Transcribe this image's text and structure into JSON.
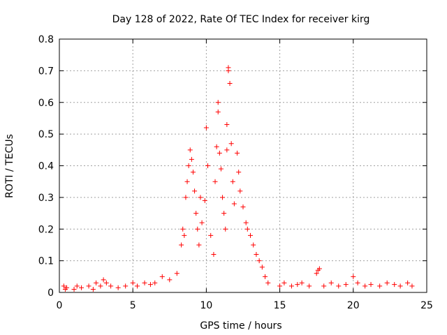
{
  "chart_data": {
    "type": "scatter",
    "title": "Day 128 of 2022, Rate Of TEC Index for receiver kirg",
    "xlabel": "GPS time / hours",
    "ylabel": "ROTI / TECUs",
    "xlim": [
      0,
      25
    ],
    "ylim": [
      0,
      0.8
    ],
    "xticks": [
      "0",
      "5",
      "10",
      "15",
      "20",
      "25"
    ],
    "yticks": [
      "0",
      "0.1",
      "0.2",
      "0.3",
      "0.4",
      "0.5",
      "0.6",
      "0.7",
      "0.8"
    ],
    "grid": true,
    "marker": "+",
    "color": "#ff0000",
    "points": [
      [
        0.3,
        0.02
      ],
      [
        0.4,
        0.01
      ],
      [
        0.5,
        0.015
      ],
      [
        1.0,
        0.01
      ],
      [
        1.2,
        0.02
      ],
      [
        1.5,
        0.015
      ],
      [
        2.0,
        0.02
      ],
      [
        2.3,
        0.01
      ],
      [
        2.5,
        0.03
      ],
      [
        2.8,
        0.02
      ],
      [
        3.0,
        0.04
      ],
      [
        3.2,
        0.03
      ],
      [
        3.5,
        0.02
      ],
      [
        4.0,
        0.015
      ],
      [
        4.5,
        0.02
      ],
      [
        5.0,
        0.03
      ],
      [
        5.3,
        0.02
      ],
      [
        5.8,
        0.03
      ],
      [
        6.2,
        0.025
      ],
      [
        6.5,
        0.03
      ],
      [
        7.0,
        0.05
      ],
      [
        7.5,
        0.04
      ],
      [
        8.0,
        0.06
      ],
      [
        8.3,
        0.15
      ],
      [
        8.4,
        0.2
      ],
      [
        8.5,
        0.18
      ],
      [
        8.6,
        0.3
      ],
      [
        8.7,
        0.35
      ],
      [
        8.8,
        0.4
      ],
      [
        8.9,
        0.45
      ],
      [
        9.0,
        0.42
      ],
      [
        9.1,
        0.38
      ],
      [
        9.2,
        0.32
      ],
      [
        9.3,
        0.25
      ],
      [
        9.4,
        0.2
      ],
      [
        9.5,
        0.15
      ],
      [
        9.6,
        0.3
      ],
      [
        9.7,
        0.22
      ],
      [
        9.9,
        0.29
      ],
      [
        10.0,
        0.52
      ],
      [
        10.1,
        0.4
      ],
      [
        10.3,
        0.18
      ],
      [
        10.5,
        0.12
      ],
      [
        10.6,
        0.35
      ],
      [
        10.7,
        0.46
      ],
      [
        10.8,
        0.6
      ],
      [
        10.8,
        0.57
      ],
      [
        10.9,
        0.44
      ],
      [
        11.0,
        0.39
      ],
      [
        11.1,
        0.3
      ],
      [
        11.2,
        0.25
      ],
      [
        11.3,
        0.2
      ],
      [
        11.4,
        0.45
      ],
      [
        11.4,
        0.53
      ],
      [
        11.5,
        0.7
      ],
      [
        11.5,
        0.71
      ],
      [
        11.6,
        0.66
      ],
      [
        11.7,
        0.47
      ],
      [
        11.8,
        0.35
      ],
      [
        11.9,
        0.28
      ],
      [
        12.1,
        0.44
      ],
      [
        12.2,
        0.38
      ],
      [
        12.3,
        0.32
      ],
      [
        12.5,
        0.27
      ],
      [
        12.7,
        0.22
      ],
      [
        12.8,
        0.2
      ],
      [
        13.0,
        0.18
      ],
      [
        13.2,
        0.15
      ],
      [
        13.4,
        0.12
      ],
      [
        13.6,
        0.1
      ],
      [
        13.8,
        0.08
      ],
      [
        14.0,
        0.05
      ],
      [
        14.2,
        0.03
      ],
      [
        15.0,
        0.02
      ],
      [
        15.3,
        0.03
      ],
      [
        15.8,
        0.02
      ],
      [
        16.2,
        0.025
      ],
      [
        16.5,
        0.03
      ],
      [
        17.0,
        0.02
      ],
      [
        17.5,
        0.06
      ],
      [
        17.6,
        0.07
      ],
      [
        17.7,
        0.075
      ],
      [
        18.0,
        0.02
      ],
      [
        18.5,
        0.03
      ],
      [
        19.0,
        0.02
      ],
      [
        19.5,
        0.025
      ],
      [
        20.0,
        0.05
      ],
      [
        20.3,
        0.03
      ],
      [
        20.8,
        0.02
      ],
      [
        21.2,
        0.025
      ],
      [
        21.8,
        0.02
      ],
      [
        22.3,
        0.03
      ],
      [
        22.8,
        0.025
      ],
      [
        23.2,
        0.02
      ],
      [
        23.7,
        0.03
      ],
      [
        24.0,
        0.02
      ]
    ]
  }
}
